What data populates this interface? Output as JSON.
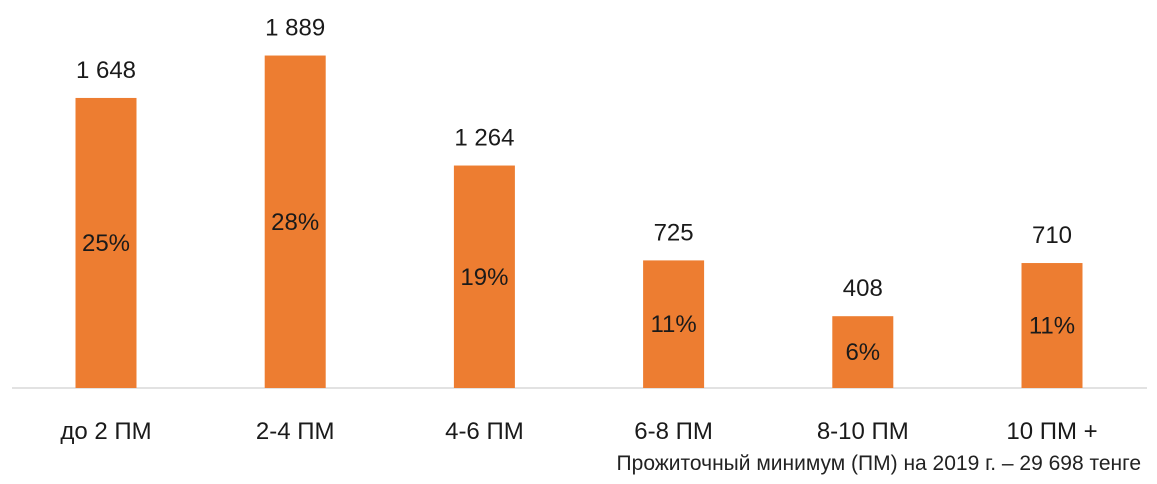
{
  "chart_data": {
    "type": "bar",
    "categories": [
      "до 2 ПМ",
      "2-4 ПМ",
      "4-6 ПМ",
      "6-8 ПМ",
      "8-10 ПМ",
      "10 ПМ +"
    ],
    "values": [
      1648,
      1889,
      1264,
      725,
      408,
      710
    ],
    "value_labels": [
      "1 648",
      "1 889",
      "1 264",
      "725",
      "408",
      "710"
    ],
    "share_labels": [
      "25%",
      "28%",
      "19%",
      "11%",
      "6%",
      "11%"
    ],
    "ylim": [
      0,
      2000
    ],
    "grid": false,
    "legend": "none",
    "bar_color": "#ED7D31",
    "note": "Прожиточный минимум (ПМ) на 2019 г. – 29 698 тенге"
  }
}
